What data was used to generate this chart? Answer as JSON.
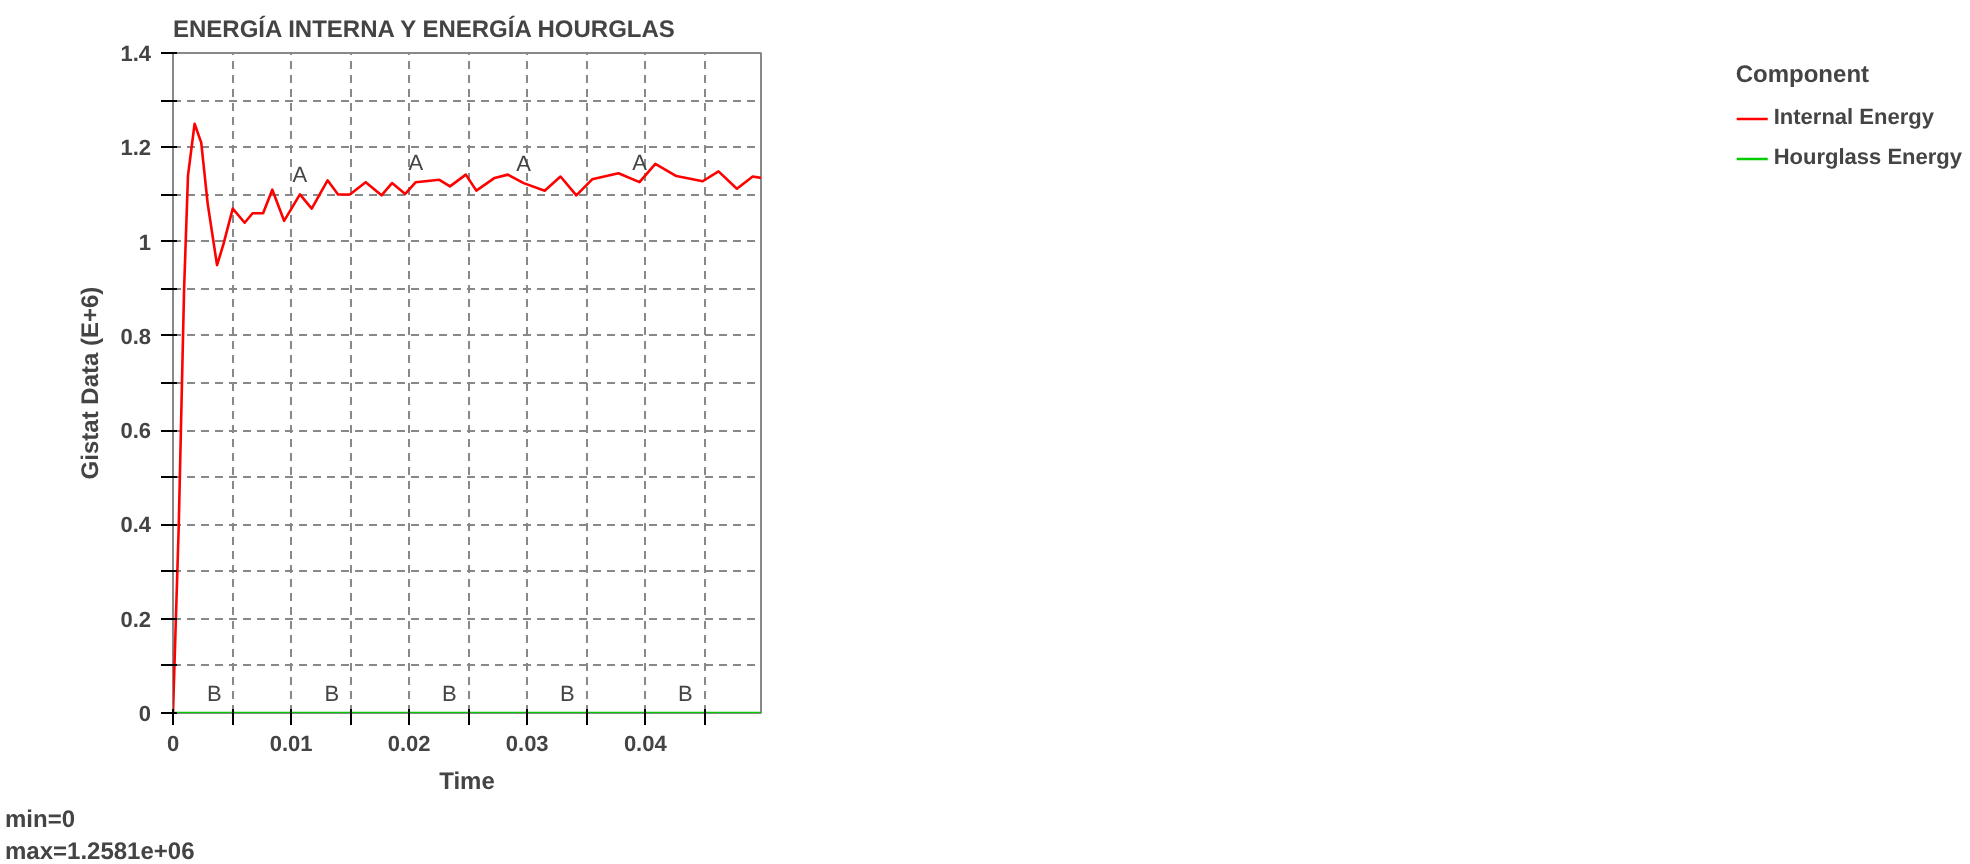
{
  "chart_data": {
    "type": "line",
    "title": "ENERGÍA INTERNA Y ENERGÍA HOURGLAS",
    "xlabel": "Time",
    "ylabel": "Gistat Data (E+6)",
    "legend_title": "Component",
    "series": [
      {
        "name": "Internal Energy",
        "color": "#ff0000",
        "x": [
          0,
          0.00049,
          0.00094,
          0.00127,
          0.00183,
          0.00239,
          0.00294,
          0.00373,
          0.00428,
          0.00506,
          0.00607,
          0.00674,
          0.00763,
          0.00841,
          0.00941,
          0.01075,
          0.01175,
          0.01309,
          0.01398,
          0.01498,
          0.01632,
          0.01766,
          0.01855,
          0.01967,
          0.02056,
          0.02256,
          0.02346,
          0.0248,
          0.02569,
          0.02724,
          0.02836,
          0.0297,
          0.03148,
          0.03282,
          0.03416,
          0.0355,
          0.03773,
          0.03951,
          0.04085,
          0.04263,
          0.04486,
          0.0462,
          0.04776,
          0.0491,
          0.0498
        ],
        "values": [
          0,
          0.4,
          0.9,
          1.14,
          1.25,
          1.21,
          1.08,
          0.95,
          0.995,
          1.07,
          1.04,
          1.06,
          1.06,
          1.11,
          1.044,
          1.1,
          1.07,
          1.13,
          1.1,
          1.1,
          1.126,
          1.098,
          1.124,
          1.101,
          1.126,
          1.131,
          1.117,
          1.142,
          1.108,
          1.135,
          1.142,
          1.124,
          1.108,
          1.138,
          1.098,
          1.132,
          1.145,
          1.126,
          1.165,
          1.139,
          1.128,
          1.149,
          1.112,
          1.138,
          1.135
        ]
      },
      {
        "name": "Hourglass Energy",
        "color": "#00cc00",
        "x": [
          0,
          0.0498
        ],
        "values": [
          0,
          0
        ]
      }
    ],
    "xlim": [
      0,
      0.0498
    ],
    "ylim": [
      0,
      1.4
    ],
    "xticks": [
      0,
      {
        "value": 0.005,
        "label": null
      },
      0.01,
      {
        "value": 0.015,
        "label": null
      },
      0.02,
      {
        "value": 0.025,
        "label": null
      },
      0.03,
      {
        "value": 0.035,
        "label": null
      },
      0.04,
      {
        "value": 0.045,
        "label": null
      }
    ],
    "yticks": [
      0,
      {
        "value": 0.1,
        "label": null
      },
      0.2,
      {
        "value": 0.3,
        "label": null
      },
      0.4,
      {
        "value": 0.5,
        "label": null
      },
      0.6,
      {
        "value": 0.7,
        "label": null
      },
      0.8,
      {
        "value": 0.9,
        "label": null
      },
      1,
      {
        "value": 1.1,
        "label": null
      },
      1.2,
      {
        "value": 1.3,
        "label": null
      },
      1.4
    ],
    "grid": true,
    "legend": "right",
    "line_style": "solid",
    "marker": "none",
    "annotations": [
      {
        "text": "A",
        "x": 0.01075,
        "y": 1.1
      },
      {
        "text": "A",
        "x": 0.02056,
        "y": 1.126
      },
      {
        "text": "A",
        "x": 0.0297,
        "y": 1.124
      },
      {
        "text": "A",
        "x": 0.03951,
        "y": 1.126
      },
      {
        "text": "B",
        "x": 0.0035,
        "y": 0
      },
      {
        "text": "B",
        "x": 0.01345,
        "y": 0
      },
      {
        "text": "B",
        "x": 0.0234,
        "y": 0
      },
      {
        "text": "B",
        "x": 0.0334,
        "y": 0
      },
      {
        "text": "B",
        "x": 0.0434,
        "y": 0
      },
      "min=0",
      "max=1.2581e+06"
    ]
  }
}
